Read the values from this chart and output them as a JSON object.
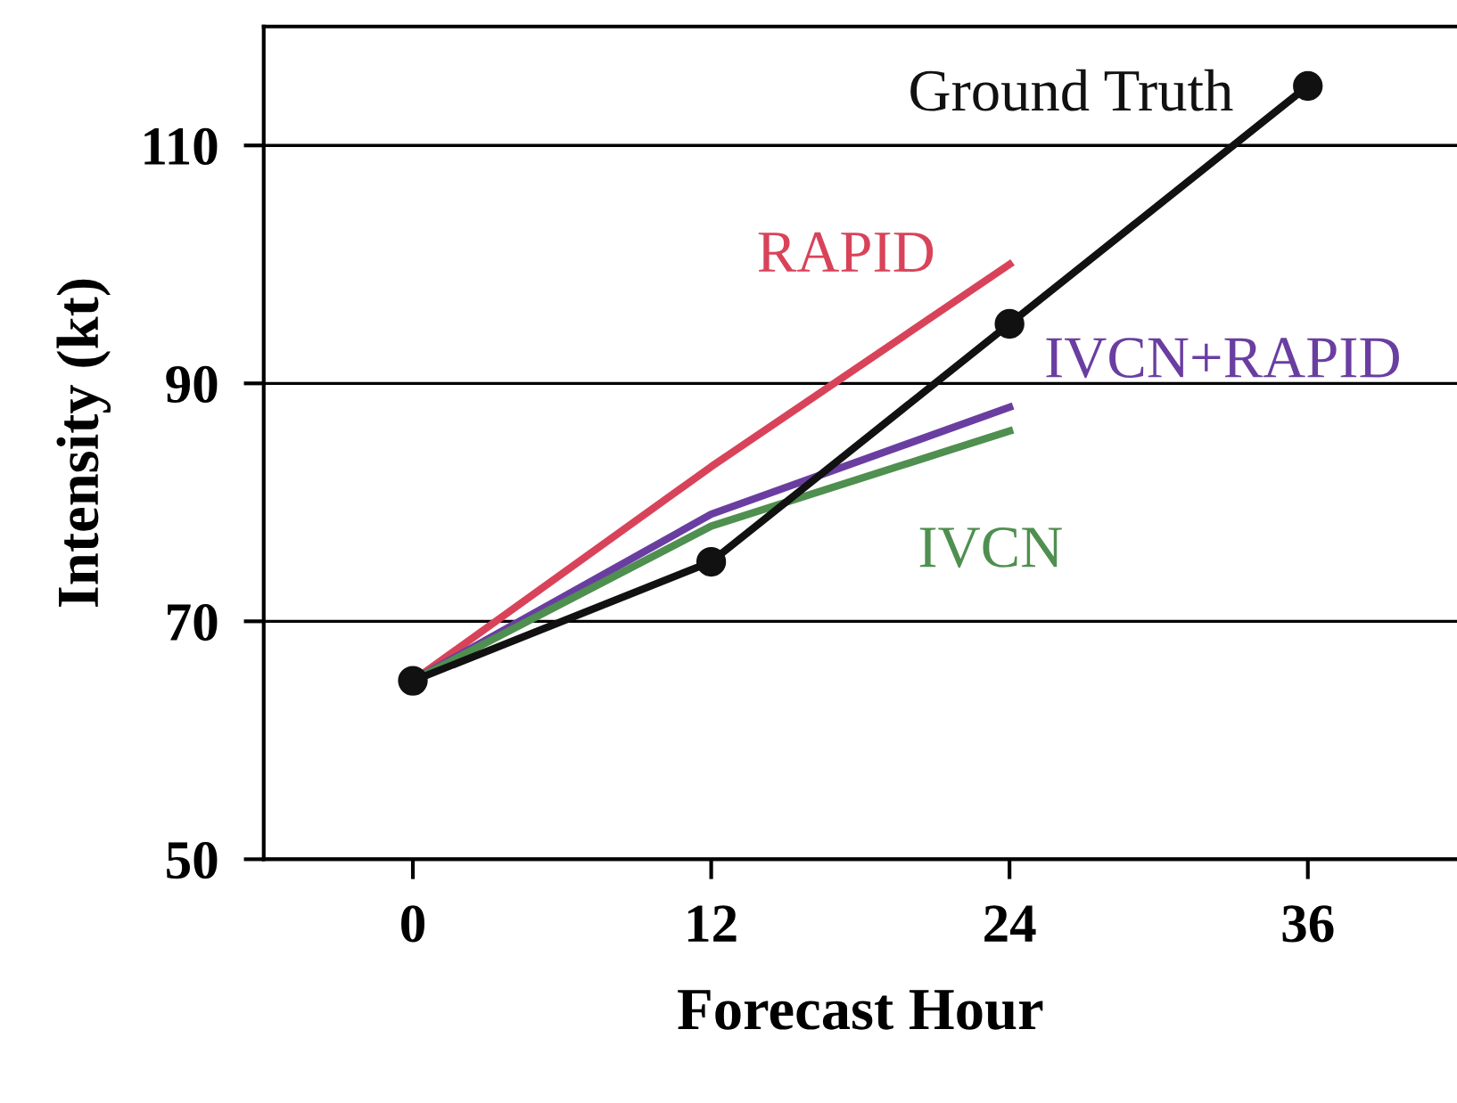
{
  "chart_data": {
    "type": "line",
    "xlabel": "Forecast Hour",
    "ylabel": "Intensity (kt)",
    "xlim": [
      -6,
      42
    ],
    "ylim": [
      50,
      120
    ],
    "xticks": [
      0,
      12,
      24,
      36
    ],
    "yticks": [
      50,
      70,
      90,
      110
    ],
    "grid": "y",
    "legend": false,
    "series": [
      {
        "name": "Ground Truth",
        "color": "#111111",
        "x": [
          0,
          12,
          24,
          36
        ],
        "values": [
          65,
          75,
          95,
          115
        ],
        "marker": "circle"
      },
      {
        "name": "RAPID",
        "color": "#d9435a",
        "x": [
          0,
          12,
          24
        ],
        "values": [
          65,
          83,
          100
        ],
        "marker": "none"
      },
      {
        "name": "IVCN+RAPID",
        "color": "#6a3ea1",
        "x": [
          0,
          12,
          24
        ],
        "values": [
          65,
          79,
          88
        ],
        "marker": "none"
      },
      {
        "name": "IVCN",
        "color": "#4f8f4f",
        "x": [
          0,
          12,
          24
        ],
        "values": [
          65,
          78,
          86
        ],
        "marker": "none"
      }
    ]
  }
}
